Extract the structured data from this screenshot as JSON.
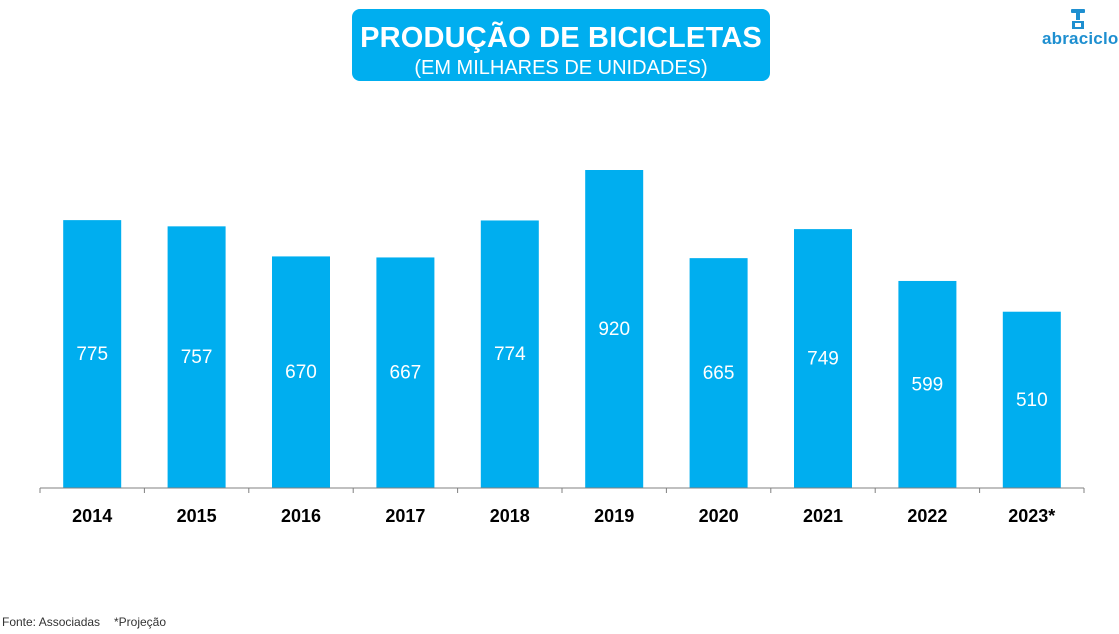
{
  "title": {
    "main": "PRODUÇÃO DE BICICLETAS",
    "sub": "(EM MILHARES DE UNIDADES)"
  },
  "logo": {
    "text": "abraciclo"
  },
  "chart_data": {
    "type": "bar",
    "title": "PRODUÇÃO DE BICICLETAS",
    "subtitle": "(EM MILHARES DE UNIDADES)",
    "categories": [
      "2014",
      "2015",
      "2016",
      "2017",
      "2018",
      "2019",
      "2020",
      "2021",
      "2022",
      "2023*"
    ],
    "values": [
      775,
      757,
      670,
      667,
      774,
      920,
      665,
      749,
      599,
      510
    ],
    "xlabel": "",
    "ylabel": "",
    "ylim": [
      0,
      920
    ],
    "grid": false,
    "legend": "none",
    "bar_color": "#00aeef"
  },
  "footer": {
    "source": "Fonte: Associadas",
    "note": "*Projeção"
  },
  "colors": {
    "accent": "#00aeef",
    "logo": "#1e8fd0",
    "axis": "#808080",
    "bar_label": "#ffffff",
    "tick_label": "#000000"
  }
}
